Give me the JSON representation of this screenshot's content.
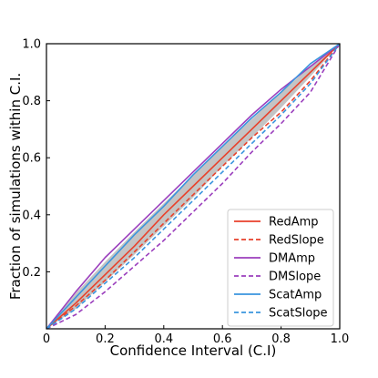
{
  "chart_data": {
    "type": "line",
    "title": "",
    "xlabel": "Confidence Interval (C.I)",
    "ylabel": "Fraction of simulations within C.I.",
    "xlim": [
      0,
      1
    ],
    "ylim": [
      0,
      1
    ],
    "xticks": [
      "0",
      "0.2",
      "0.4",
      "0.6",
      "0.8",
      "1.0"
    ],
    "yticks": [
      "0.2",
      "0.4",
      "0.6",
      "0.8",
      "1.0"
    ],
    "xtick_values": [
      0,
      0.2,
      0.4,
      0.6,
      0.8,
      1.0
    ],
    "ytick_values": [
      0.2,
      0.4,
      0.6,
      0.8,
      1.0
    ],
    "grid": false,
    "legend_position": "lower-right",
    "band": {
      "color": "#b0b0b0",
      "x": [
        0,
        0.1,
        0.2,
        0.3,
        0.4,
        0.5,
        0.6,
        0.7,
        0.8,
        0.9,
        1.0
      ],
      "lower": [
        0,
        0.07,
        0.165,
        0.26,
        0.36,
        0.46,
        0.57,
        0.67,
        0.775,
        0.885,
        1.0
      ],
      "upper": [
        0,
        0.125,
        0.235,
        0.34,
        0.44,
        0.54,
        0.64,
        0.735,
        0.83,
        0.92,
        1.0
      ]
    },
    "series": [
      {
        "name": "RedAmp",
        "color": "#e8412b",
        "dash": "solid",
        "x": [
          0,
          0.1,
          0.2,
          0.3,
          0.4,
          0.5,
          0.6,
          0.7,
          0.8,
          0.9,
          1.0
        ],
        "y": [
          0,
          0.09,
          0.19,
          0.29,
          0.4,
          0.5,
          0.6,
          0.7,
          0.8,
          0.9,
          1.0
        ]
      },
      {
        "name": "RedSlope",
        "color": "#e8412b",
        "dash": "dashed",
        "x": [
          0,
          0.1,
          0.2,
          0.3,
          0.4,
          0.5,
          0.6,
          0.7,
          0.8,
          0.9,
          1.0
        ],
        "y": [
          0,
          0.08,
          0.17,
          0.27,
          0.37,
          0.47,
          0.57,
          0.67,
          0.76,
          0.87,
          1.0
        ]
      },
      {
        "name": "DMAmp",
        "color": "#9b3fbd",
        "dash": "solid",
        "x": [
          0,
          0.1,
          0.2,
          0.3,
          0.4,
          0.5,
          0.6,
          0.7,
          0.8,
          0.9,
          1.0
        ],
        "y": [
          0,
          0.13,
          0.25,
          0.35,
          0.45,
          0.55,
          0.65,
          0.75,
          0.84,
          0.92,
          1.0
        ]
      },
      {
        "name": "DMSlope",
        "color": "#9b3fbd",
        "dash": "dashed",
        "x": [
          0,
          0.1,
          0.2,
          0.3,
          0.4,
          0.5,
          0.6,
          0.7,
          0.8,
          0.9,
          1.0
        ],
        "y": [
          0,
          0.05,
          0.13,
          0.22,
          0.31,
          0.41,
          0.51,
          0.62,
          0.72,
          0.83,
          1.0
        ]
      },
      {
        "name": "ScatAmp",
        "color": "#3a95de",
        "dash": "solid",
        "x": [
          0,
          0.1,
          0.2,
          0.3,
          0.4,
          0.5,
          0.6,
          0.7,
          0.8,
          0.9,
          1.0
        ],
        "y": [
          0,
          0.11,
          0.22,
          0.33,
          0.43,
          0.54,
          0.64,
          0.74,
          0.83,
          0.93,
          1.0
        ]
      },
      {
        "name": "ScatSlope",
        "color": "#3a95de",
        "dash": "dashed",
        "x": [
          0,
          0.1,
          0.2,
          0.3,
          0.4,
          0.5,
          0.6,
          0.7,
          0.8,
          0.9,
          1.0
        ],
        "y": [
          0,
          0.07,
          0.16,
          0.25,
          0.35,
          0.45,
          0.55,
          0.65,
          0.75,
          0.86,
          1.0
        ]
      }
    ]
  }
}
